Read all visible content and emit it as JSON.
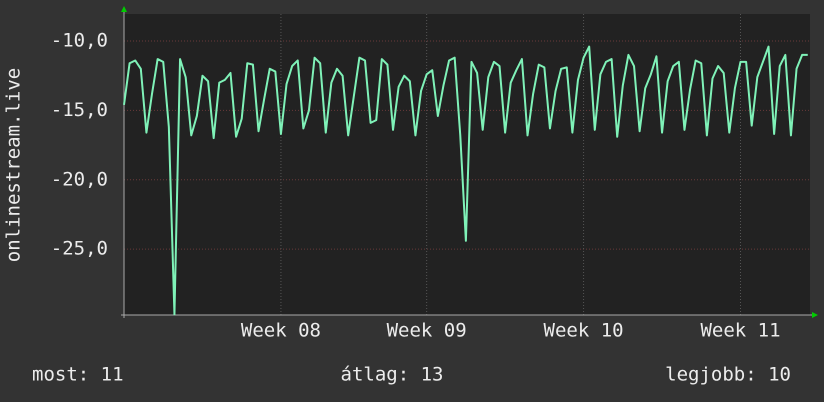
{
  "chart_data": {
    "type": "line",
    "y_label": "onlinestream.live",
    "color": "#7ff2b8",
    "grid": true,
    "xlim": [
      0,
      30.6
    ],
    "xticks": [
      {
        "value": 7.0,
        "label": "Week 08"
      },
      {
        "value": 13.5,
        "label": "Week 09"
      },
      {
        "value": 20.5,
        "label": "Week 10"
      },
      {
        "value": 27.5,
        "label": "Week 11"
      }
    ],
    "ylim": [
      -29.75,
      -8.05
    ],
    "yticks": [
      {
        "value": -10,
        "label": "-10,0"
      },
      {
        "value": -15,
        "label": "-15,0"
      },
      {
        "value": -20,
        "label": "-20,0"
      },
      {
        "value": -25,
        "label": "-25,0"
      }
    ],
    "annotations": [
      "most: 11",
      "átlag: 13",
      "legjobb: 10"
    ],
    "x": [
      0,
      0.25,
      0.5,
      0.75,
      1,
      1.25,
      1.5,
      1.75,
      2,
      2.25,
      2.5,
      2.75,
      3,
      3.25,
      3.5,
      3.75,
      4,
      4.25,
      4.5,
      4.75,
      5,
      5.25,
      5.5,
      5.75,
      6,
      6.25,
      6.5,
      6.75,
      7,
      7.25,
      7.5,
      7.75,
      8,
      8.25,
      8.5,
      8.75,
      9,
      9.25,
      9.5,
      9.75,
      10,
      10.25,
      10.5,
      10.75,
      11,
      11.25,
      11.5,
      11.75,
      12,
      12.25,
      12.5,
      12.75,
      13,
      13.25,
      13.5,
      13.75,
      14,
      14.25,
      14.5,
      14.75,
      15,
      15.25,
      15.5,
      15.75,
      16,
      16.25,
      16.5,
      16.75,
      17,
      17.25,
      17.5,
      17.75,
      18,
      18.25,
      18.5,
      18.75,
      19,
      19.25,
      19.5,
      19.75,
      20,
      20.25,
      20.5,
      20.75,
      21,
      21.25,
      21.5,
      21.75,
      22,
      22.25,
      22.5,
      22.75,
      23,
      23.25,
      23.5,
      23.75,
      24,
      24.25,
      24.5,
      24.75,
      25,
      25.25,
      25.5,
      25.75,
      26,
      26.25,
      26.5,
      26.75,
      27,
      27.25,
      27.5,
      27.75,
      28,
      28.25,
      28.5,
      28.75,
      29,
      29.25,
      29.5,
      29.75,
      30,
      30.25,
      30.5
    ],
    "values": [
      -14.6,
      -11.6,
      -11.4,
      -12.0,
      -16.6,
      -13.8,
      -11.3,
      -11.5,
      -16.2,
      -29.7,
      -11.3,
      -12.6,
      -16.8,
      -15.4,
      -12.5,
      -12.9,
      -17.0,
      -13.0,
      -12.8,
      -12.3,
      -16.9,
      -15.6,
      -11.6,
      -11.7,
      -16.5,
      -14.2,
      -12.0,
      -12.2,
      -16.7,
      -13.1,
      -11.8,
      -11.4,
      -16.3,
      -15.0,
      -11.2,
      -11.6,
      -16.6,
      -13.0,
      -12.0,
      -12.5,
      -16.8,
      -14.0,
      -11.2,
      -11.4,
      -15.9,
      -15.7,
      -11.3,
      -11.7,
      -16.4,
      -13.3,
      -12.5,
      -12.9,
      -16.8,
      -13.6,
      -12.4,
      -12.1,
      -15.4,
      -13.2,
      -11.4,
      -11.2,
      -16.8,
      -24.4,
      -11.5,
      -12.3,
      -16.4,
      -12.6,
      -11.5,
      -11.8,
      -16.6,
      -13.0,
      -12.1,
      -11.3,
      -16.8,
      -13.8,
      -11.7,
      -11.9,
      -16.3,
      -13.6,
      -12.0,
      -11.9,
      -16.6,
      -12.8,
      -11.2,
      -10.4,
      -16.4,
      -12.4,
      -11.5,
      -11.3,
      -16.9,
      -13.2,
      -11.0,
      -11.8,
      -16.5,
      -13.4,
      -12.4,
      -11.1,
      -16.6,
      -12.9,
      -11.8,
      -11.5,
      -16.4,
      -13.5,
      -11.4,
      -11.6,
      -16.8,
      -12.7,
      -11.8,
      -12.3,
      -16.6,
      -13.4,
      -11.5,
      -11.5,
      -16.1,
      -12.6,
      -11.5,
      -10.4,
      -16.7,
      -11.8,
      -11.0,
      -16.8,
      -12.0,
      -11.0,
      -11.0
    ]
  }
}
